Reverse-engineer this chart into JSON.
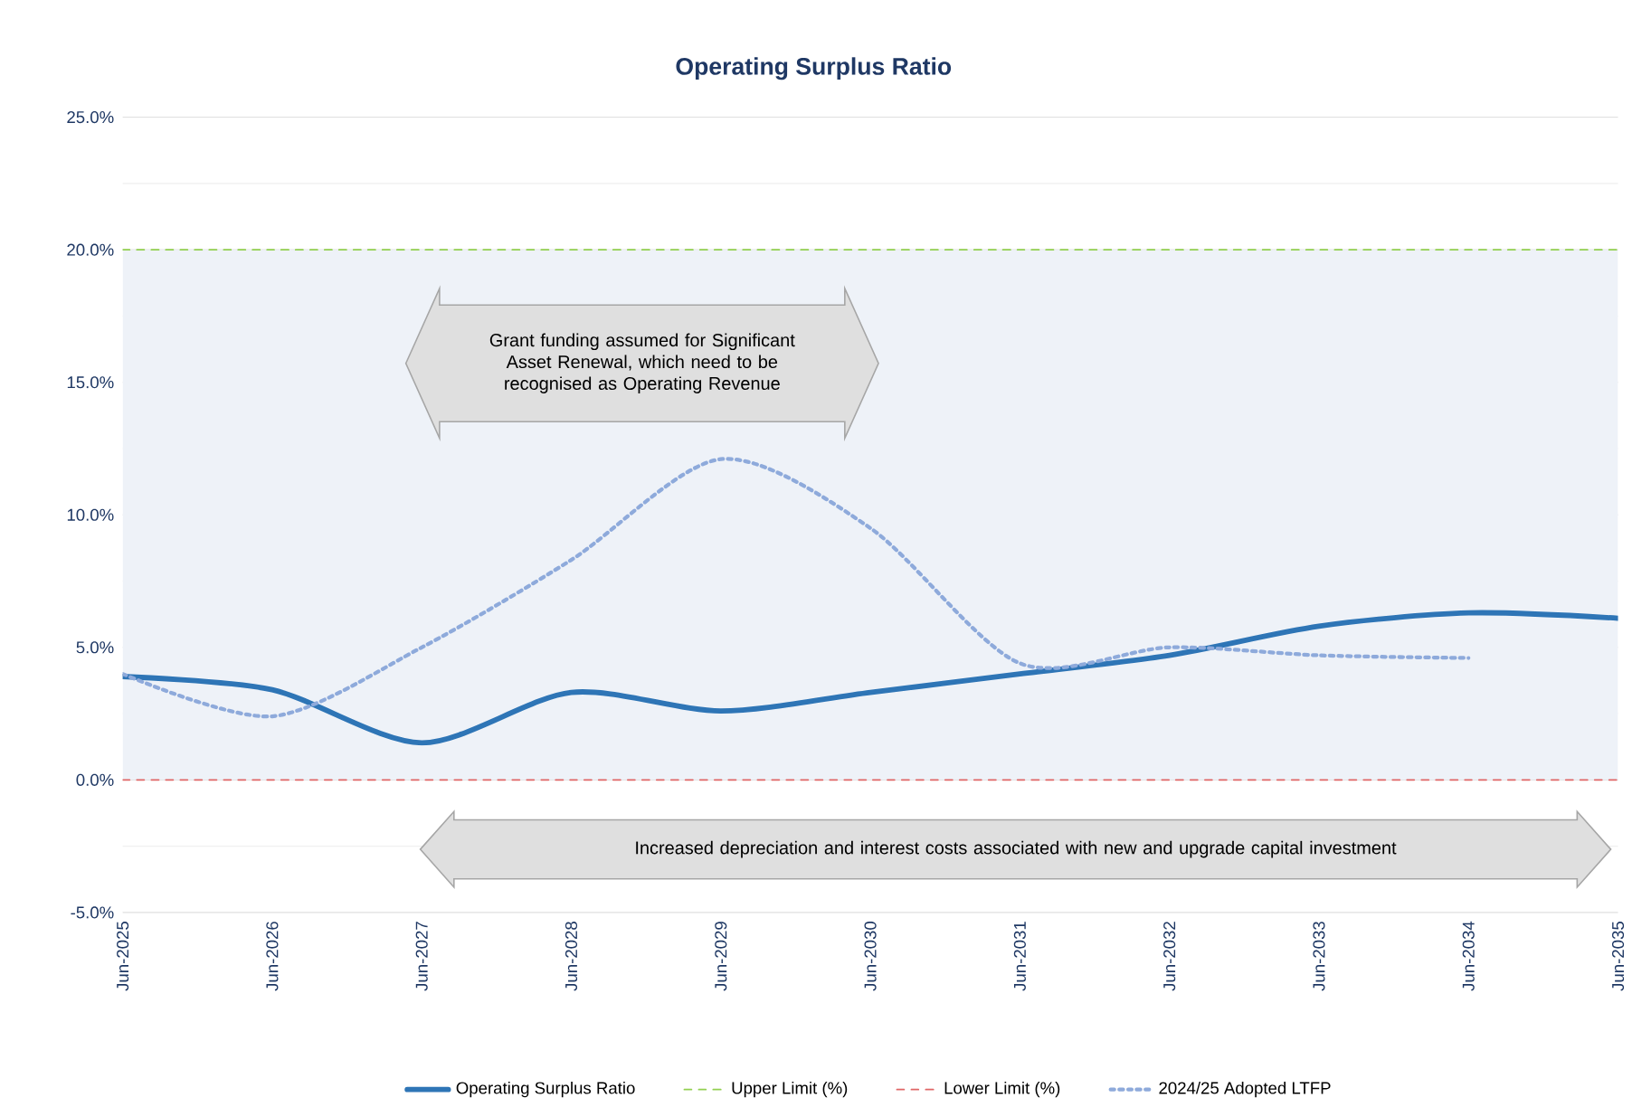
{
  "chart_data": {
    "type": "line",
    "title": "Operating Surplus Ratio",
    "categories": [
      "Jun-2025",
      "Jun-2026",
      "Jun-2027",
      "Jun-2028",
      "Jun-2029",
      "Jun-2030",
      "Jun-2031",
      "Jun-2032",
      "Jun-2033",
      "Jun-2034",
      "Jun-2035"
    ],
    "series": [
      {
        "name": "Operating Surplus Ratio",
        "color": "#2e75b6",
        "line_style": "solid",
        "values": [
          3.9,
          3.4,
          1.4,
          3.3,
          2.6,
          3.3,
          4.0,
          4.7,
          5.8,
          6.3,
          6.1
        ]
      },
      {
        "name": "Upper Limit (%)",
        "color": "#92d050",
        "line_style": "dashed",
        "values": [
          20,
          20,
          20,
          20,
          20,
          20,
          20,
          20,
          20,
          20,
          20
        ]
      },
      {
        "name": "Lower Limit (%)",
        "color": "#e06666",
        "line_style": "dashed",
        "values": [
          0,
          0,
          0,
          0,
          0,
          0,
          0,
          0,
          0,
          0,
          0
        ]
      },
      {
        "name": "2024/25 Adopted LTFP",
        "color": "#8eaadb",
        "line_style": "dotted",
        "values": [
          4.0,
          2.4,
          5.0,
          8.3,
          12.1,
          9.5,
          4.4,
          5.0,
          4.7,
          4.6,
          null
        ]
      }
    ],
    "ylim": [
      -5,
      25
    ],
    "yticks": [
      {
        "value": -5,
        "label": "-5.0%"
      },
      {
        "value": 0,
        "label": "0.0%"
      },
      {
        "value": 5,
        "label": "5.0%"
      },
      {
        "value": 10,
        "label": "10.0%"
      },
      {
        "value": 15,
        "label": "15.0%"
      },
      {
        "value": 20,
        "label": "20.0%"
      },
      {
        "value": 25,
        "label": "25.0%"
      }
    ],
    "bands": [
      {
        "axis": "y",
        "from": 0,
        "to": 20,
        "color": "#eef2f8"
      }
    ],
    "annotations": [
      "Grant funding assumed for Significant Asset Renewal, which need to be recognised as Operating Revenue",
      "Increased depreciation and interest costs associated with new and upgrade capital investment"
    ],
    "grid": "y",
    "legend": "bottom"
  }
}
